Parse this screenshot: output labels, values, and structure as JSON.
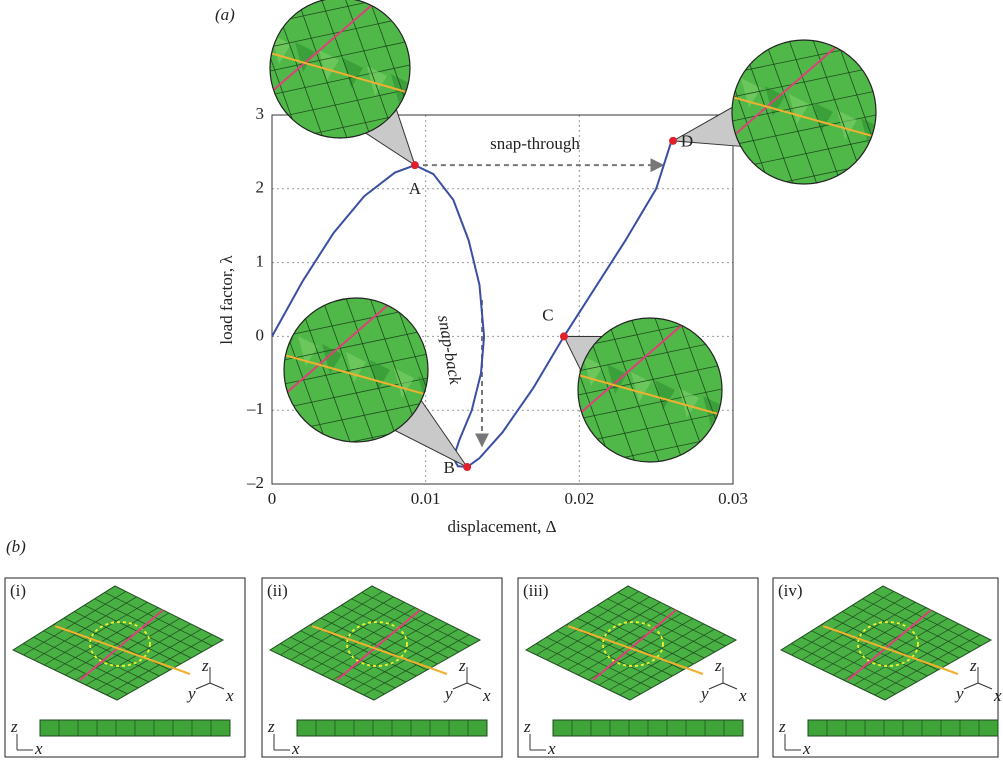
{
  "chart_data": {
    "type": "line",
    "panel_label": "(a)",
    "x_label": "displacement, Δ",
    "y_label": "load factor, λ",
    "xlim": [
      0,
      0.03
    ],
    "ylim": [
      -2,
      3
    ],
    "xticks": [
      0,
      0.01,
      0.02,
      0.03
    ],
    "yticks": [
      {
        "value": -2,
        "label": "–2"
      },
      {
        "value": -1,
        "label": "–1"
      },
      0,
      1,
      2,
      3
    ],
    "grid": true,
    "series": [
      {
        "color": "#3a4fa3",
        "x": [
          0,
          0.002,
          0.004,
          0.006,
          0.008,
          0.0093,
          0.0105,
          0.0118,
          0.0128,
          0.0135,
          0.0138,
          0.0136,
          0.013,
          0.0122,
          0.0118,
          0.0121,
          0.0127,
          0.0135,
          0.015,
          0.017,
          0.019,
          0.021,
          0.023,
          0.025,
          0.026
        ],
        "values": [
          0,
          0.75,
          1.4,
          1.9,
          2.22,
          2.32,
          2.2,
          1.85,
          1.3,
          0.7,
          0,
          -0.5,
          -1.0,
          -1.4,
          -1.65,
          -1.76,
          -1.77,
          -1.65,
          -1.3,
          -0.7,
          0,
          0.65,
          1.3,
          2.0,
          2.65
        ]
      }
    ],
    "points": {
      "color": "#e0202a",
      "labels": [
        "A",
        "B",
        "C",
        "D"
      ],
      "x": [
        0.0093,
        0.0127,
        0.019,
        0.0261
      ],
      "values": [
        2.32,
        -1.77,
        0,
        2.65
      ]
    },
    "annotations": [
      "snap-through",
      "snap-back"
    ]
  },
  "panel_b": {
    "label": "(b)",
    "panels": [
      {
        "label": "(i)",
        "axis_3d": [
          "z",
          "y",
          "x"
        ],
        "axis_2d": [
          "z",
          "x"
        ]
      },
      {
        "label": "(ii)",
        "axis_3d": [
          "z",
          "y",
          "x"
        ],
        "axis_2d": [
          "z",
          "x"
        ]
      },
      {
        "label": "(iii)",
        "axis_3d": [
          "z",
          "y",
          "x"
        ],
        "axis_2d": [
          "z",
          "x"
        ]
      },
      {
        "label": "(iv)",
        "axis_3d": [
          "z",
          "y",
          "x"
        ],
        "axis_2d": [
          "z",
          "x"
        ]
      }
    ]
  }
}
